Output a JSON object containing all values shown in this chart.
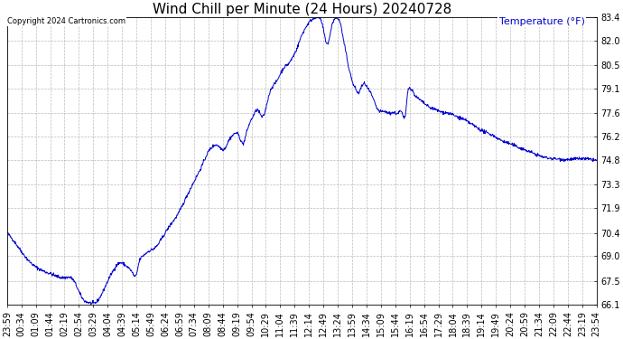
{
  "title": "Wind Chill per Minute (24 Hours) 20240728",
  "ylabel": "Temperature (°F)",
  "copyright": "Copyright 2024 Cartronics.com",
  "line_color": "#0000cc",
  "background_color": "#ffffff",
  "grid_color": "#aaaaaa",
  "yticks": [
    66.1,
    67.5,
    69.0,
    70.4,
    71.9,
    73.3,
    74.8,
    76.2,
    77.6,
    79.1,
    80.5,
    82.0,
    83.4
  ],
  "ymin": 66.1,
  "ymax": 83.4,
  "title_fontsize": 11,
  "tick_fontsize": 7,
  "x_tick_labels": [
    "23:59",
    "00:34",
    "01:09",
    "01:44",
    "02:19",
    "02:54",
    "03:29",
    "04:04",
    "04:39",
    "05:14",
    "05:49",
    "06:24",
    "06:59",
    "07:34",
    "08:09",
    "08:44",
    "09:19",
    "09:54",
    "10:29",
    "11:04",
    "11:39",
    "12:14",
    "12:49",
    "13:24",
    "13:59",
    "14:34",
    "15:09",
    "15:44",
    "16:19",
    "16:54",
    "17:29",
    "18:04",
    "18:39",
    "19:14",
    "19:49",
    "20:24",
    "20:59",
    "21:34",
    "22:09",
    "22:44",
    "23:19",
    "23:54"
  ],
  "num_minutes": 1435,
  "control_points": [
    [
      0,
      70.4
    ],
    [
      20,
      69.8
    ],
    [
      50,
      68.8
    ],
    [
      80,
      68.2
    ],
    [
      110,
      67.9
    ],
    [
      140,
      67.7
    ],
    [
      160,
      67.6
    ],
    [
      185,
      66.4
    ],
    [
      200,
      66.2
    ],
    [
      210,
      66.15
    ],
    [
      220,
      66.3
    ],
    [
      230,
      66.7
    ],
    [
      245,
      67.5
    ],
    [
      260,
      68.2
    ],
    [
      275,
      68.6
    ],
    [
      285,
      68.5
    ],
    [
      295,
      68.3
    ],
    [
      305,
      68.0
    ],
    [
      315,
      67.9
    ],
    [
      320,
      68.5
    ],
    [
      330,
      69.0
    ],
    [
      345,
      69.3
    ],
    [
      360,
      69.5
    ],
    [
      375,
      70.0
    ],
    [
      395,
      70.8
    ],
    [
      415,
      71.5
    ],
    [
      435,
      72.5
    ],
    [
      455,
      73.5
    ],
    [
      475,
      74.5
    ],
    [
      490,
      75.3
    ],
    [
      500,
      75.6
    ],
    [
      510,
      75.7
    ],
    [
      520,
      75.5
    ],
    [
      530,
      75.5
    ],
    [
      540,
      76.0
    ],
    [
      550,
      76.3
    ],
    [
      560,
      76.4
    ],
    [
      565,
      76.2
    ],
    [
      570,
      75.9
    ],
    [
      575,
      75.8
    ],
    [
      580,
      76.2
    ],
    [
      590,
      77.0
    ],
    [
      600,
      77.5
    ],
    [
      610,
      77.8
    ],
    [
      615,
      77.6
    ],
    [
      620,
      77.4
    ],
    [
      625,
      77.5
    ],
    [
      635,
      78.5
    ],
    [
      645,
      79.2
    ],
    [
      655,
      79.5
    ],
    [
      665,
      80.0
    ],
    [
      675,
      80.4
    ],
    [
      685,
      80.6
    ],
    [
      695,
      81.0
    ],
    [
      705,
      81.5
    ],
    [
      715,
      82.2
    ],
    [
      725,
      82.7
    ],
    [
      735,
      83.1
    ],
    [
      745,
      83.3
    ],
    [
      750,
      83.38
    ],
    [
      755,
      83.4
    ],
    [
      760,
      83.35
    ],
    [
      765,
      83.1
    ],
    [
      770,
      82.6
    ],
    [
      775,
      82.0
    ],
    [
      780,
      81.8
    ],
    [
      785,
      82.2
    ],
    [
      790,
      82.9
    ],
    [
      795,
      83.2
    ],
    [
      800,
      83.35
    ],
    [
      805,
      83.3
    ],
    [
      810,
      83.1
    ],
    [
      815,
      82.5
    ],
    [
      820,
      81.8
    ],
    [
      825,
      81.2
    ],
    [
      830,
      80.5
    ],
    [
      835,
      80.0
    ],
    [
      840,
      79.5
    ],
    [
      845,
      79.2
    ],
    [
      850,
      79.0
    ],
    [
      855,
      78.8
    ],
    [
      860,
      79.1
    ],
    [
      865,
      79.3
    ],
    [
      870,
      79.4
    ],
    [
      875,
      79.2
    ],
    [
      880,
      79.0
    ],
    [
      885,
      78.8
    ],
    [
      890,
      78.5
    ],
    [
      895,
      78.2
    ],
    [
      900,
      77.9
    ],
    [
      910,
      77.7
    ],
    [
      920,
      77.7
    ],
    [
      930,
      77.6
    ],
    [
      940,
      77.65
    ],
    [
      950,
      77.6
    ],
    [
      960,
      77.65
    ],
    [
      970,
      77.7
    ],
    [
      975,
      79.0
    ],
    [
      980,
      79.1
    ],
    [
      985,
      79.0
    ],
    [
      990,
      78.8
    ],
    [
      995,
      78.6
    ],
    [
      1000,
      78.5
    ],
    [
      1005,
      78.4
    ],
    [
      1010,
      78.3
    ],
    [
      1015,
      78.2
    ],
    [
      1020,
      78.1
    ],
    [
      1025,
      78.0
    ],
    [
      1035,
      77.9
    ],
    [
      1045,
      77.8
    ],
    [
      1055,
      77.7
    ],
    [
      1065,
      77.65
    ],
    [
      1075,
      77.6
    ],
    [
      1085,
      77.5
    ],
    [
      1095,
      77.4
    ],
    [
      1105,
      77.3
    ],
    [
      1120,
      77.1
    ],
    [
      1140,
      76.8
    ],
    [
      1160,
      76.5
    ],
    [
      1180,
      76.3
    ],
    [
      1200,
      76.0
    ],
    [
      1220,
      75.8
    ],
    [
      1240,
      75.6
    ],
    [
      1260,
      75.4
    ],
    [
      1280,
      75.2
    ],
    [
      1300,
      75.0
    ],
    [
      1320,
      74.9
    ],
    [
      1340,
      74.85
    ],
    [
      1360,
      74.82
    ],
    [
      1380,
      74.85
    ],
    [
      1400,
      74.87
    ],
    [
      1420,
      74.82
    ],
    [
      1434,
      74.78
    ]
  ]
}
